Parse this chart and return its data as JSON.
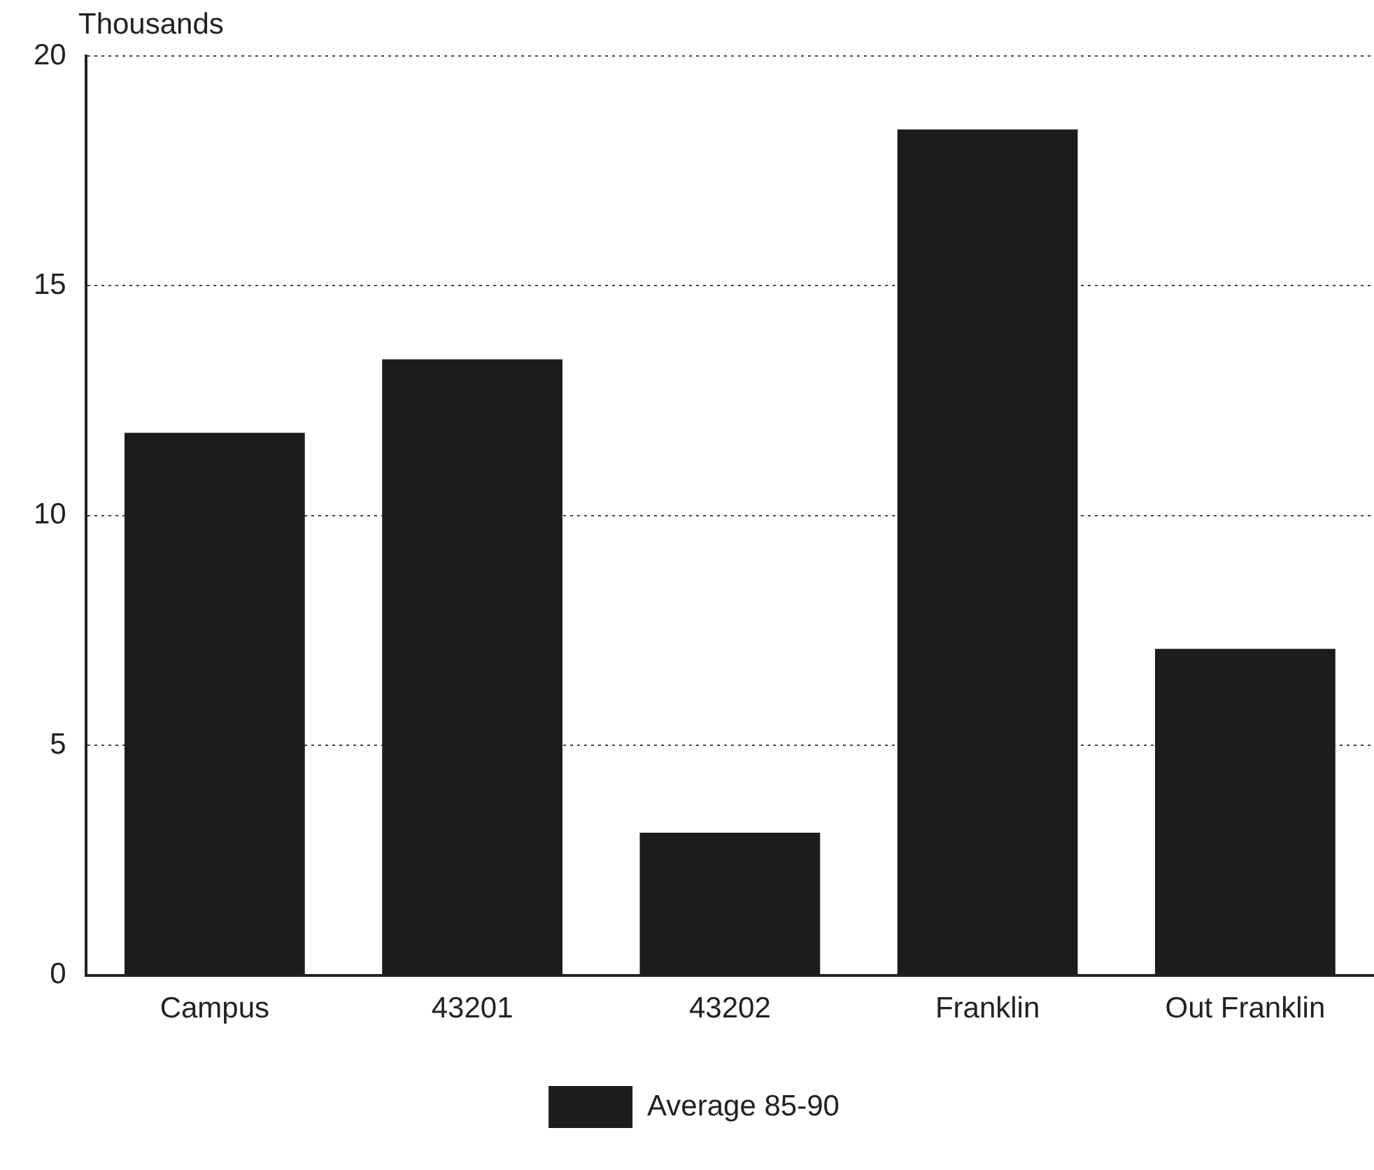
{
  "chart_data": {
    "type": "bar",
    "ylabel": "Thousands",
    "categories": [
      "Campus",
      "43201",
      "43202",
      "Franklin",
      "Out Franklin"
    ],
    "series": [
      {
        "name": "Average 85-90",
        "color": "#1c1c1c",
        "values": [
          11.8,
          13.4,
          3.1,
          18.4,
          7.1
        ]
      }
    ],
    "ylim": [
      0,
      20
    ],
    "yticks": [
      0,
      5,
      10,
      15,
      20
    ],
    "grid": "y",
    "legend": "bottom"
  }
}
